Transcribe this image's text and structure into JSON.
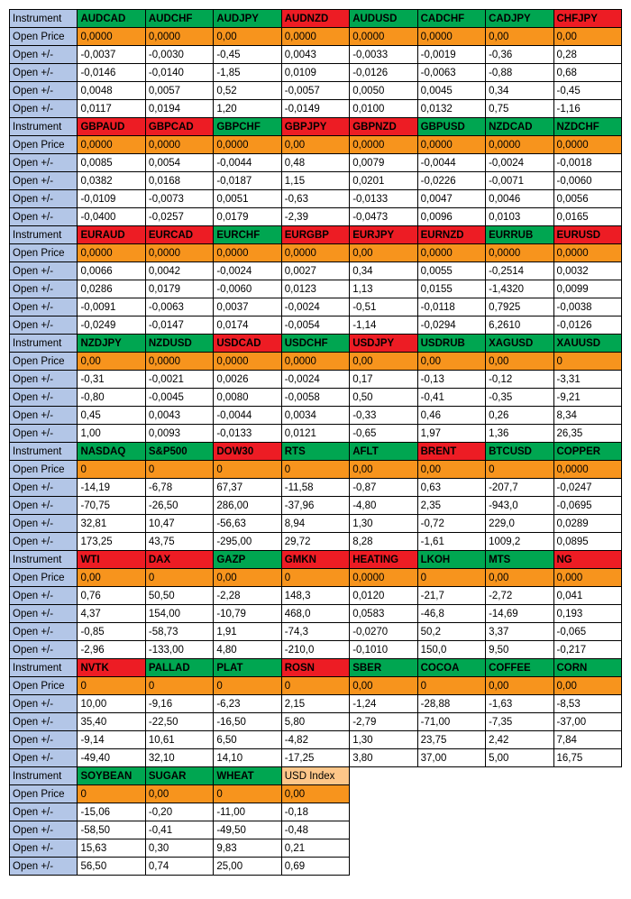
{
  "labels": {
    "instrument": "Instrument",
    "openprice": "Open Price",
    "openpm": "Open +/-"
  },
  "blocks": [
    {
      "headers": [
        {
          "t": "AUDCAD",
          "c": "green"
        },
        {
          "t": "AUDCHF",
          "c": "green"
        },
        {
          "t": "AUDJPY",
          "c": "green"
        },
        {
          "t": "AUDNZD",
          "c": "red"
        },
        {
          "t": "AUDUSD",
          "c": "green"
        },
        {
          "t": "CADCHF",
          "c": "green"
        },
        {
          "t": "CADJPY",
          "c": "green"
        },
        {
          "t": "CHFJPY",
          "c": "red"
        }
      ],
      "openprice": [
        "0,0000",
        "0,0000",
        "0,00",
        "0,0000",
        "0,0000",
        "0,0000",
        "0,00",
        "0,00"
      ],
      "rows": [
        [
          "-0,0037",
          "-0,0030",
          "-0,45",
          "0,0043",
          "-0,0033",
          "-0,0019",
          "-0,36",
          "0,28"
        ],
        [
          "-0,0146",
          "-0,0140",
          "-1,85",
          "0,0109",
          "-0,0126",
          "-0,0063",
          "-0,88",
          "0,68"
        ],
        [
          "0,0048",
          "0,0057",
          "0,52",
          "-0,0057",
          "0,0050",
          "0,0045",
          "0,34",
          "-0,45"
        ],
        [
          "0,0117",
          "0,0194",
          "1,20",
          "-0,0149",
          "0,0100",
          "0,0132",
          "0,75",
          "-1,16"
        ]
      ]
    },
    {
      "headers": [
        {
          "t": "GBPAUD",
          "c": "red"
        },
        {
          "t": "GBPCAD",
          "c": "red"
        },
        {
          "t": "GBPCHF",
          "c": "green"
        },
        {
          "t": "GBPJPY",
          "c": "red"
        },
        {
          "t": "GBPNZD",
          "c": "red"
        },
        {
          "t": "GBPUSD",
          "c": "green"
        },
        {
          "t": "NZDCAD",
          "c": "green"
        },
        {
          "t": "NZDCHF",
          "c": "green"
        }
      ],
      "openprice": [
        "0,0000",
        "0,0000",
        "0,0000",
        "0,00",
        "0,0000",
        "0,0000",
        "0,0000",
        "0,0000"
      ],
      "rows": [
        [
          "0,0085",
          "0,0054",
          "-0,0044",
          "0,48",
          "0,0079",
          "-0,0044",
          "-0,0024",
          "-0,0018"
        ],
        [
          "0,0382",
          "0,0168",
          "-0,0187",
          "1,15",
          "0,0201",
          "-0,0226",
          "-0,0071",
          "-0,0060"
        ],
        [
          "-0,0109",
          "-0,0073",
          "0,0051",
          "-0,63",
          "-0,0133",
          "0,0047",
          "0,0046",
          "0,0056"
        ],
        [
          "-0,0400",
          "-0,0257",
          "0,0179",
          "-2,39",
          "-0,0473",
          "0,0096",
          "0,0103",
          "0,0165"
        ]
      ]
    },
    {
      "headers": [
        {
          "t": "EURAUD",
          "c": "red"
        },
        {
          "t": "EURCAD",
          "c": "red"
        },
        {
          "t": "EURCHF",
          "c": "green"
        },
        {
          "t": "EURGBP",
          "c": "red"
        },
        {
          "t": "EURJPY",
          "c": "red"
        },
        {
          "t": "EURNZD",
          "c": "red"
        },
        {
          "t": "EURRUB",
          "c": "green"
        },
        {
          "t": "EURUSD",
          "c": "red"
        }
      ],
      "openprice": [
        "0,0000",
        "0,0000",
        "0,0000",
        "0,0000",
        "0,00",
        "0,0000",
        "0,0000",
        "0,0000"
      ],
      "rows": [
        [
          "0,0066",
          "0,0042",
          "-0,0024",
          "0,0027",
          "0,34",
          "0,0055",
          "-0,2514",
          "0,0032"
        ],
        [
          "0,0286",
          "0,0179",
          "-0,0060",
          "0,0123",
          "1,13",
          "0,0155",
          "-1,4320",
          "0,0099"
        ],
        [
          "-0,0091",
          "-0,0063",
          "0,0037",
          "-0,0024",
          "-0,51",
          "-0,0118",
          "0,7925",
          "-0,0038"
        ],
        [
          "-0,0249",
          "-0,0147",
          "0,0174",
          "-0,0054",
          "-1,14",
          "-0,0294",
          "6,2610",
          "-0,0126"
        ]
      ]
    },
    {
      "headers": [
        {
          "t": "NZDJPY",
          "c": "green"
        },
        {
          "t": "NZDUSD",
          "c": "green"
        },
        {
          "t": "USDCAD",
          "c": "red"
        },
        {
          "t": "USDCHF",
          "c": "green"
        },
        {
          "t": "USDJPY",
          "c": "red"
        },
        {
          "t": "USDRUB",
          "c": "green"
        },
        {
          "t": "XAGUSD",
          "c": "green"
        },
        {
          "t": "XAUUSD",
          "c": "green"
        }
      ],
      "openprice": [
        "0,00",
        "0,0000",
        "0,0000",
        "0,0000",
        "0,00",
        "0,00",
        "0,00",
        "0"
      ],
      "rows": [
        [
          "-0,31",
          "-0,0021",
          "0,0026",
          "-0,0024",
          "0,17",
          "-0,13",
          "-0,12",
          "-3,31"
        ],
        [
          "-0,80",
          "-0,0045",
          "0,0080",
          "-0,0058",
          "0,50",
          "-0,41",
          "-0,35",
          "-9,21"
        ],
        [
          "0,45",
          "0,0043",
          "-0,0044",
          "0,0034",
          "-0,33",
          "0,46",
          "0,26",
          "8,34"
        ],
        [
          "1,00",
          "0,0093",
          "-0,0133",
          "0,0121",
          "-0,65",
          "1,97",
          "1,36",
          "26,35"
        ]
      ]
    },
    {
      "headers": [
        {
          "t": "NASDAQ",
          "c": "green"
        },
        {
          "t": "S&P500",
          "c": "green"
        },
        {
          "t": "DOW30",
          "c": "red"
        },
        {
          "t": "RTS",
          "c": "green"
        },
        {
          "t": "AFLT",
          "c": "green"
        },
        {
          "t": "BRENT",
          "c": "red"
        },
        {
          "t": "BTCUSD",
          "c": "green"
        },
        {
          "t": "COPPER",
          "c": "green"
        }
      ],
      "openprice": [
        "0",
        "0",
        "0",
        "0",
        "0,00",
        "0,00",
        "0",
        "0,0000"
      ],
      "rows": [
        [
          "-14,19",
          "-6,78",
          "67,37",
          "-11,58",
          "-0,87",
          "0,63",
          "-207,7",
          "-0,0247"
        ],
        [
          "-70,75",
          "-26,50",
          "286,00",
          "-37,96",
          "-4,80",
          "2,35",
          "-943,0",
          "-0,0695"
        ],
        [
          "32,81",
          "10,47",
          "-56,63",
          "8,94",
          "1,30",
          "-0,72",
          "229,0",
          "0,0289"
        ],
        [
          "173,25",
          "43,75",
          "-295,00",
          "29,72",
          "8,28",
          "-1,61",
          "1009,2",
          "0,0895"
        ]
      ]
    },
    {
      "headers": [
        {
          "t": "WTI",
          "c": "red"
        },
        {
          "t": "DAX",
          "c": "red"
        },
        {
          "t": "GAZP",
          "c": "green"
        },
        {
          "t": "GMKN",
          "c": "red"
        },
        {
          "t": "HEATING",
          "c": "red"
        },
        {
          "t": "LKOH",
          "c": "green"
        },
        {
          "t": "MTS",
          "c": "green"
        },
        {
          "t": "NG",
          "c": "red"
        }
      ],
      "openprice": [
        "0,00",
        "0",
        "0,00",
        "0",
        "0,0000",
        "0",
        "0,00",
        "0,000"
      ],
      "rows": [
        [
          "0,76",
          "50,50",
          "-2,28",
          "148,3",
          "0,0120",
          "-21,7",
          "-2,72",
          "0,041"
        ],
        [
          "4,37",
          "154,00",
          "-10,79",
          "468,0",
          "0,0583",
          "-46,8",
          "-14,69",
          "0,193"
        ],
        [
          "-0,85",
          "-58,73",
          "1,91",
          "-74,3",
          "-0,0270",
          "50,2",
          "3,37",
          "-0,065"
        ],
        [
          "-2,96",
          "-133,00",
          "4,80",
          "-210,0",
          "-0,1010",
          "150,0",
          "9,50",
          "-0,217"
        ]
      ]
    },
    {
      "headers": [
        {
          "t": "NVTK",
          "c": "red"
        },
        {
          "t": "PALLAD",
          "c": "green"
        },
        {
          "t": "PLAT",
          "c": "green"
        },
        {
          "t": "ROSN",
          "c": "red"
        },
        {
          "t": "SBER",
          "c": "green"
        },
        {
          "t": "COCOA",
          "c": "green"
        },
        {
          "t": "COFFEE",
          "c": "green"
        },
        {
          "t": "CORN",
          "c": "green"
        }
      ],
      "openprice": [
        "0",
        "0",
        "0",
        "0",
        "0,00",
        "0",
        "0,00",
        "0,00"
      ],
      "rows": [
        [
          "10,00",
          "-9,16",
          "-6,23",
          "2,15",
          "-1,24",
          "-28,88",
          "-1,63",
          "-8,53"
        ],
        [
          "35,40",
          "-22,50",
          "-16,50",
          "5,80",
          "-2,79",
          "-71,00",
          "-7,35",
          "-37,00"
        ],
        [
          "-9,14",
          "10,61",
          "6,50",
          "-4,82",
          "1,30",
          "23,75",
          "2,42",
          "7,84"
        ],
        [
          "-49,40",
          "32,10",
          "14,10",
          "-17,25",
          "3,80",
          "37,00",
          "5,00",
          "16,75"
        ]
      ]
    },
    {
      "headers": [
        {
          "t": "SOYBEAN",
          "c": "green"
        },
        {
          "t": "SUGAR",
          "c": "green"
        },
        {
          "t": "WHEAT",
          "c": "green"
        },
        {
          "t": "USD Index",
          "c": "lightorange"
        }
      ],
      "openprice": [
        "0",
        "0,00",
        "0",
        "0,00"
      ],
      "rows": [
        [
          "-15,06",
          "-0,20",
          "-11,00",
          "-0,18"
        ],
        [
          "-58,50",
          "-0,41",
          "-49,50",
          "-0,48"
        ],
        [
          "15,63",
          "0,30",
          "9,83",
          "0,21"
        ],
        [
          "56,50",
          "0,74",
          "25,00",
          "0,69"
        ]
      ]
    }
  ]
}
